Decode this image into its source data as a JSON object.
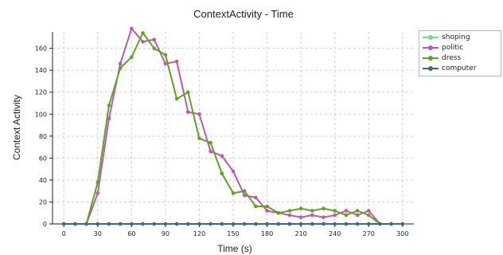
{
  "chart_data": {
    "type": "line",
    "title": "ContextActivity - Time",
    "xlabel": "Time (s)",
    "ylabel": "Context Activity",
    "xlim": [
      -10,
      310
    ],
    "ylim": [
      0,
      175
    ],
    "xticks": [
      0,
      30,
      60,
      90,
      120,
      150,
      180,
      210,
      240,
      270,
      300
    ],
    "yticks": [
      0,
      20,
      40,
      60,
      80,
      100,
      120,
      140,
      160
    ],
    "grid": true,
    "legend_position": "top-right",
    "series": [
      {
        "name": "shoping",
        "color": "#7ddb7d",
        "x": [
          0,
          10,
          20,
          30,
          40,
          50,
          60,
          70,
          80,
          90,
          100,
          110,
          120,
          130,
          140,
          150,
          160,
          170,
          180,
          190,
          200,
          210,
          220,
          230,
          240,
          250,
          260,
          270,
          280,
          290,
          300
        ],
        "values": [
          0,
          0,
          0,
          0,
          0,
          0,
          0,
          0,
          0,
          0,
          0,
          0,
          0,
          0,
          0,
          0,
          0,
          0,
          0,
          0,
          0,
          0,
          0,
          0,
          0,
          0,
          0,
          0,
          0,
          0,
          0
        ]
      },
      {
        "name": "politic",
        "color": "#c456b0",
        "x": [
          0,
          10,
          20,
          30,
          40,
          50,
          60,
          70,
          80,
          90,
          100,
          110,
          120,
          130,
          140,
          150,
          160,
          170,
          180,
          190,
          200,
          210,
          220,
          230,
          240,
          250,
          260,
          270,
          280,
          290,
          300
        ],
        "values": [
          0,
          0,
          0,
          28,
          96,
          146,
          178,
          166,
          168,
          146,
          148,
          102,
          100,
          66,
          62,
          48,
          26,
          24,
          12,
          10,
          8,
          6,
          8,
          6,
          8,
          12,
          8,
          12,
          0,
          0,
          0
        ]
      },
      {
        "name": "dress",
        "color": "#5aa81c",
        "x": [
          0,
          10,
          20,
          30,
          40,
          50,
          60,
          70,
          80,
          90,
          100,
          110,
          120,
          130,
          140,
          150,
          160,
          170,
          180,
          190,
          200,
          210,
          220,
          230,
          240,
          250,
          260,
          270,
          280,
          290,
          300
        ],
        "values": [
          0,
          0,
          0,
          38,
          108,
          142,
          152,
          174,
          160,
          154,
          114,
          120,
          78,
          74,
          46,
          28,
          30,
          16,
          16,
          10,
          12,
          14,
          12,
          14,
          12,
          8,
          12,
          8,
          0,
          0,
          0
        ]
      },
      {
        "name": "computer",
        "color": "#3a6a8a",
        "x": [
          0,
          10,
          20,
          30,
          40,
          50,
          60,
          70,
          80,
          90,
          100,
          110,
          120,
          130,
          140,
          150,
          160,
          170,
          180,
          190,
          200,
          210,
          220,
          230,
          240,
          250,
          260,
          270,
          280,
          290,
          300
        ],
        "values": [
          0,
          0,
          0,
          0,
          0,
          0,
          0,
          0,
          0,
          0,
          0,
          0,
          0,
          0,
          0,
          0,
          0,
          0,
          0,
          0,
          0,
          0,
          0,
          0,
          0,
          0,
          0,
          0,
          0,
          0,
          0
        ]
      }
    ]
  }
}
